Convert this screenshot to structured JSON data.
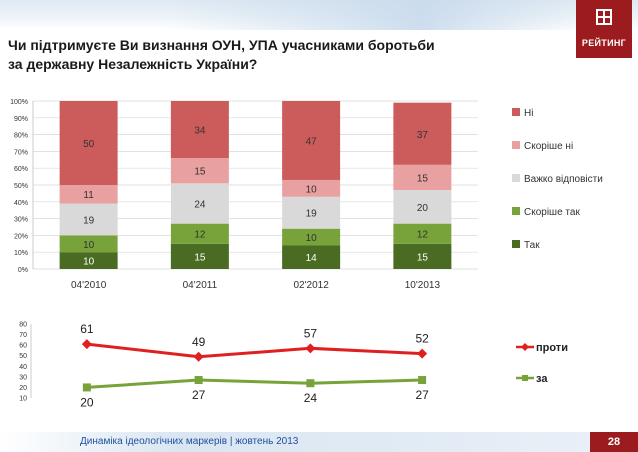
{
  "header": {
    "title_line1": "Чи підтримуєте Ви визнання ОУН, УПА учасниками боротьби",
    "title_line2": "за державну Незалежність України?",
    "logo_text": "РЕЙТИНГ"
  },
  "footer": {
    "caption": "Динаміка ідеологічних маркерів  |  жовтень 2013",
    "page_number": "28"
  },
  "colors": {
    "Ні": "#cc5c5c",
    "Скоріше ні": "#e8a0a0",
    "Важко відповісти": "#d9d9d9",
    "Скоріше так": "#77a33a",
    "Так": "#4a6b22",
    "проти": "#e02020",
    "за": "#77a33a"
  },
  "chart_data": [
    {
      "type": "bar",
      "stacked": true,
      "categories": [
        "04'2010",
        "04'2011",
        "02'2012",
        "10'2013"
      ],
      "series": [
        {
          "name": "Так",
          "values": [
            10,
            15,
            14,
            15
          ]
        },
        {
          "name": "Скоріше так",
          "values": [
            10,
            12,
            10,
            12
          ]
        },
        {
          "name": "Важко відповісти",
          "values": [
            19,
            24,
            19,
            20
          ]
        },
        {
          "name": "Скоріше ні",
          "values": [
            11,
            15,
            10,
            15
          ]
        },
        {
          "name": "Ні",
          "values": [
            50,
            34,
            47,
            37
          ]
        }
      ],
      "ylim": [
        0,
        100
      ],
      "yticks": [
        "0%",
        "10%",
        "20%",
        "30%",
        "40%",
        "50%",
        "60%",
        "70%",
        "80%",
        "90%",
        "100%"
      ],
      "legend": [
        "Ні",
        "Скоріше ні",
        "Важко відповісти",
        "Скоріше так",
        "Так"
      ]
    },
    {
      "type": "line",
      "categories": [
        "04'2010",
        "04'2011",
        "02'2012",
        "10'2013"
      ],
      "series": [
        {
          "name": "проти",
          "values": [
            61,
            49,
            57,
            52
          ]
        },
        {
          "name": "за",
          "values": [
            20,
            27,
            24,
            27
          ]
        }
      ],
      "ylim": [
        10,
        80
      ],
      "yticks": [
        "10",
        "20",
        "30",
        "40",
        "50",
        "60",
        "70",
        "80"
      ],
      "legend": [
        "проти",
        "за"
      ]
    }
  ]
}
